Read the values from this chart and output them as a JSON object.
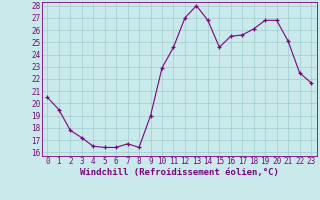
{
  "x": [
    0,
    1,
    2,
    3,
    4,
    5,
    6,
    7,
    8,
    9,
    10,
    11,
    12,
    13,
    14,
    15,
    16,
    17,
    18,
    19,
    20,
    21,
    22,
    23
  ],
  "y": [
    20.5,
    19.5,
    17.8,
    17.2,
    16.5,
    16.4,
    16.4,
    16.7,
    16.4,
    19.0,
    22.9,
    24.6,
    27.0,
    28.0,
    26.8,
    24.6,
    25.5,
    25.6,
    26.1,
    26.8,
    26.8,
    25.1,
    22.5,
    21.7
  ],
  "line_color": "#800080",
  "marker": "+",
  "marker_color": "#800080",
  "bg_color": "#c8eaea",
  "grid_color": "#a0cccc",
  "xlabel": "Windchill (Refroidissement éolien,°C)",
  "xlabel_color": "#800080",
  "tick_color": "#800080",
  "ylim": [
    16,
    28
  ],
  "xlim": [
    -0.5,
    23.5
  ],
  "yticks": [
    16,
    17,
    18,
    19,
    20,
    21,
    22,
    23,
    24,
    25,
    26,
    27,
    28
  ],
  "xticks": [
    0,
    1,
    2,
    3,
    4,
    5,
    6,
    7,
    8,
    9,
    10,
    11,
    12,
    13,
    14,
    15,
    16,
    17,
    18,
    19,
    20,
    21,
    22,
    23
  ],
  "spine_color": "#800080",
  "font_size": 5.5,
  "xlabel_fontsize": 6.5,
  "linewidth": 0.8,
  "markersize": 3.0
}
